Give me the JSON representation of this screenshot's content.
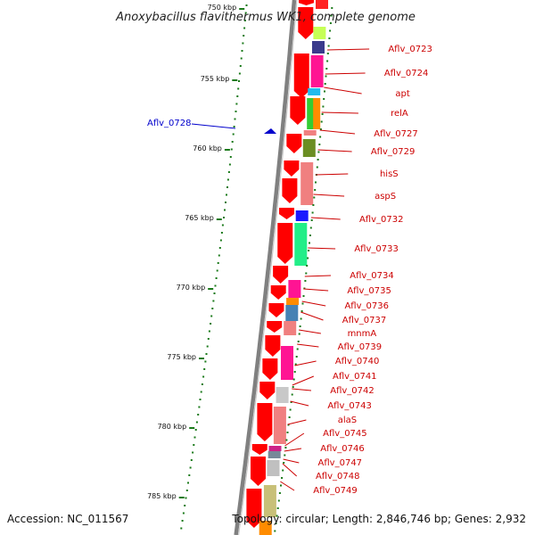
{
  "title": "Anoxybacillus flavithermus WK1, complete genome",
  "accession": "Accession: NC_011567",
  "summary": "Topology: circular; Length: 2,846,746 bp; Genes: 2,932",
  "colors": {
    "forward_gene": "#ff0000",
    "label_color": "#cc0000",
    "highlight_label_color": "#0000cc",
    "tick_color": "#1a7a1a",
    "backbone_color": "#808080"
  },
  "scale_labels": [
    "750 kbp",
    "755 kbp",
    "760 kbp",
    "765 kbp",
    "770 kbp",
    "775 kbp",
    "780 kbp",
    "785 kbp"
  ],
  "highlighted_gene": "Aflv_0728",
  "gene_labels": [
    "Aflv_0723",
    "Aflv_0724",
    "apt",
    "relA",
    "Aflv_0727",
    "Aflv_0729",
    "hisS",
    "aspS",
    "Aflv_0732",
    "Aflv_0733",
    "Aflv_0734",
    "Aflv_0735",
    "Aflv_0736",
    "Aflv_0737",
    "mnmA",
    "Aflv_0739",
    "Aflv_0740",
    "Aflv_0741",
    "Aflv_0742",
    "Aflv_0743",
    "alaS",
    "Aflv_0745",
    "Aflv_0746",
    "Aflv_0747",
    "Aflv_0748",
    "Aflv_0749"
  ]
}
